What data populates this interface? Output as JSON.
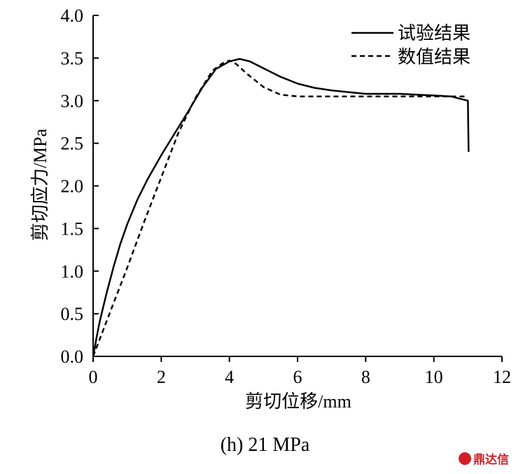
{
  "chart_data": {
    "type": "line",
    "xlabel": "剪切位移/mm",
    "ylabel": "剪切应力/MPa",
    "xlim": [
      0,
      12
    ],
    "ylim": [
      0,
      4.0
    ],
    "x_ticks": [
      "0",
      "2",
      "4",
      "6",
      "8",
      "10",
      "12"
    ],
    "y_ticks": [
      "0.0",
      "0.5",
      "1.0",
      "1.5",
      "2.0",
      "2.5",
      "3.0",
      "3.5",
      "4.0"
    ],
    "grid": false,
    "legend_position": "top-right",
    "series": [
      {
        "name": "试验结果",
        "style": "solid",
        "x": [
          0,
          0.1,
          0.2,
          0.4,
          0.6,
          0.8,
          1.0,
          1.3,
          1.6,
          2.0,
          2.4,
          2.8,
          3.2,
          3.6,
          4.0,
          4.3,
          4.6,
          5.0,
          5.5,
          6.0,
          6.5,
          7.0,
          7.5,
          8.0,
          8.5,
          9.0,
          9.5,
          10.0,
          10.5,
          11.0,
          11.02
        ],
        "y": [
          0.0,
          0.22,
          0.42,
          0.75,
          1.05,
          1.32,
          1.55,
          1.84,
          2.08,
          2.36,
          2.62,
          2.88,
          3.15,
          3.37,
          3.46,
          3.49,
          3.46,
          3.38,
          3.28,
          3.2,
          3.15,
          3.12,
          3.1,
          3.08,
          3.08,
          3.08,
          3.07,
          3.06,
          3.05,
          3.0,
          2.4
        ]
      },
      {
        "name": "数值结果",
        "style": "dashed",
        "x": [
          0,
          0.5,
          1.0,
          1.5,
          2.0,
          2.5,
          3.0,
          3.5,
          3.8,
          4.0,
          4.2,
          4.5,
          5.0,
          5.5,
          6.0,
          7.0,
          8.0,
          9.0,
          10.0,
          11.0
        ],
        "y": [
          0.0,
          0.52,
          1.04,
          1.58,
          2.1,
          2.62,
          3.03,
          3.35,
          3.44,
          3.47,
          3.43,
          3.32,
          3.16,
          3.07,
          3.05,
          3.05,
          3.05,
          3.05,
          3.05,
          3.05
        ]
      }
    ]
  },
  "caption": "(h) 21 MPa",
  "watermark": {
    "text": "鼎达信",
    "color": "#d21f26"
  }
}
